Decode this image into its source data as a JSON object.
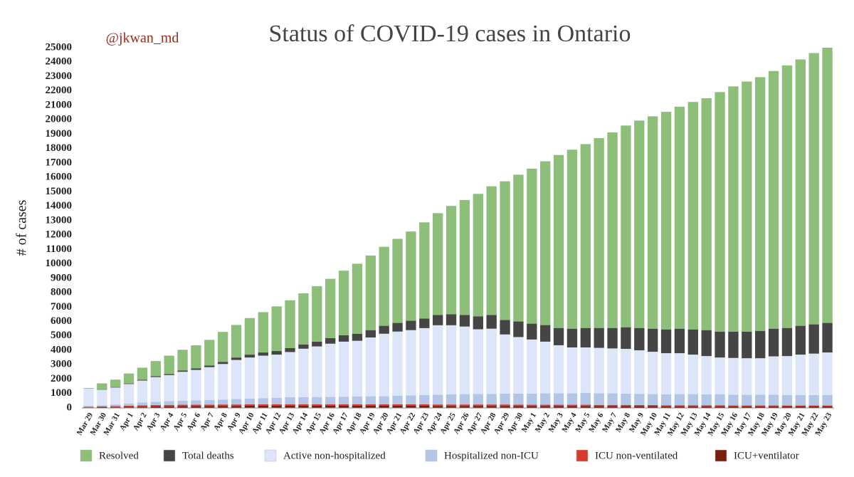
{
  "chart_data": {
    "type": "stacked_bar",
    "title": "Status of COVID-19 cases in Ontario",
    "annotation": "@jkwan_md",
    "y_label": "# of cases",
    "categories": [
      "Mar 29",
      "Mar 30",
      "Mar 31",
      "Apr 1",
      "Apr 2",
      "Apr 3",
      "Apr 4",
      "Apr 5",
      "Apr 6",
      "Apr 7",
      "Apr 8",
      "Apr 9",
      "Apr 10",
      "Apr 11",
      "Apr 12",
      "Apr 13",
      "Apr 14",
      "Apr 15",
      "Apr 16",
      "Apr 17",
      "Apr 18",
      "Apr 19",
      "Apr 20",
      "Apr 21",
      "Apr 22",
      "Apr 23",
      "Apr 24",
      "Apr 25",
      "Apr 26",
      "Apr 27",
      "Apr 28",
      "Apr 29",
      "Apr 30",
      "May 1",
      "May 2",
      "May 3",
      "May 4",
      "May 5",
      "May 6",
      "May 7",
      "May 8",
      "May 9",
      "May 10",
      "May 11",
      "May 12",
      "May 13",
      "May 14",
      "May 15",
      "May 16",
      "May 17",
      "May 18",
      "May 19",
      "May 20",
      "May 21",
      "May 22",
      "May 23"
    ],
    "series": [
      {
        "name": "Resolved",
        "color": "#8dbf7a",
        "values": [
          0,
          406,
          516,
          692,
          843,
          1055,
          1280,
          1438,
          1597,
          1776,
          2076,
          2259,
          2537,
          2798,
          3099,
          3320,
          3553,
          3847,
          4111,
          4475,
          4860,
          5178,
          5484,
          5835,
          6195,
          6679,
          7069,
          7518,
          7982,
          8506,
          8931,
          9628,
          10187,
          10758,
          11369,
          12003,
          12423,
          12760,
          13172,
          13571,
          13998,
          14394,
          14738,
          15096,
          15407,
          15786,
          16094,
          16622,
          17013,
          17353,
          17607,
          17884,
          18224,
          18487,
          18828,
          19100
        ]
      },
      {
        "name": "Total deaths",
        "color": "#454545",
        "values": [
          20,
          30,
          35,
          40,
          50,
          60,
          70,
          90,
          110,
          120,
          150,
          170,
          200,
          220,
          250,
          270,
          290,
          330,
          390,
          450,
          490,
          510,
          550,
          600,
          650,
          660,
          710,
          760,
          800,
          890,
          950,
          1000,
          1080,
          1100,
          1150,
          1200,
          1300,
          1350,
          1380,
          1420,
          1500,
          1550,
          1600,
          1650,
          1700,
          1750,
          1800,
          1800,
          1830,
          1850,
          1900,
          1920,
          1950,
          2000,
          2030,
          2050
        ]
      },
      {
        "name": "Active non-hospitalized",
        "color": "#dde6f8",
        "values": [
          1195,
          1080,
          1175,
          1350,
          1520,
          1710,
          1810,
          2010,
          2110,
          2280,
          2480,
          2710,
          2850,
          2950,
          2990,
          3140,
          3360,
          3510,
          3690,
          3820,
          3860,
          4080,
          4340,
          4450,
          4530,
          4650,
          4820,
          4800,
          4690,
          4490,
          4520,
          4100,
          3920,
          3750,
          3590,
          3330,
          3180,
          3150,
          3150,
          3120,
          3100,
          3020,
          2940,
          2850,
          2840,
          2740,
          2650,
          2560,
          2550,
          2540,
          2530,
          2660,
          2700,
          2800,
          2880,
          2960
        ]
      },
      {
        "name": "Hospitalized non-ICU",
        "color": "#b4c6e7",
        "values": [
          60,
          80,
          110,
          150,
          200,
          230,
          260,
          280,
          300,
          320,
          330,
          380,
          400,
          430,
          450,
          480,
          490,
          500,
          510,
          520,
          540,
          550,
          560,
          600,
          620,
          640,
          680,
          700,
          720,
          730,
          740,
          760,
          770,
          780,
          790,
          800,
          800,
          830,
          810,
          800,
          790,
          780,
          760,
          760,
          770,
          770,
          760,
          750,
          740,
          730,
          740,
          740,
          730,
          730,
          720,
          720
        ]
      },
      {
        "name": "ICU non-ventilated",
        "color": "#d63b2b",
        "values": [
          40,
          60,
          70,
          80,
          90,
          100,
          100,
          100,
          100,
          100,
          100,
          100,
          100,
          100,
          110,
          110,
          110,
          110,
          110,
          110,
          110,
          110,
          100,
          100,
          100,
          100,
          100,
          100,
          100,
          100,
          100,
          100,
          100,
          90,
          90,
          90,
          90,
          90,
          90,
          90,
          90,
          80,
          80,
          80,
          80,
          80,
          80,
          80,
          70,
          70,
          70,
          70,
          70,
          70,
          70,
          70
        ]
      },
      {
        "name": "ICU+ventilator",
        "color": "#7a1c10",
        "values": [
          40,
          50,
          60,
          80,
          90,
          100,
          110,
          120,
          130,
          130,
          140,
          140,
          150,
          150,
          150,
          150,
          150,
          150,
          150,
          150,
          150,
          150,
          150,
          150,
          150,
          150,
          140,
          140,
          140,
          140,
          140,
          140,
          130,
          130,
          130,
          130,
          130,
          130,
          120,
          120,
          120,
          120,
          120,
          110,
          110,
          110,
          110,
          110,
          110,
          110,
          110,
          110,
          100,
          100,
          100,
          100
        ]
      }
    ],
    "ylim": [
      0,
      25000
    ],
    "yticks": [
      0,
      1000,
      2000,
      3000,
      4000,
      5000,
      6000,
      7000,
      8000,
      9000,
      10000,
      11000,
      12000,
      13000,
      14000,
      15000,
      16000,
      17000,
      18000,
      19000,
      20000,
      21000,
      22000,
      23000,
      24000,
      25000
    ],
    "grid": false,
    "legend": "bottom"
  }
}
